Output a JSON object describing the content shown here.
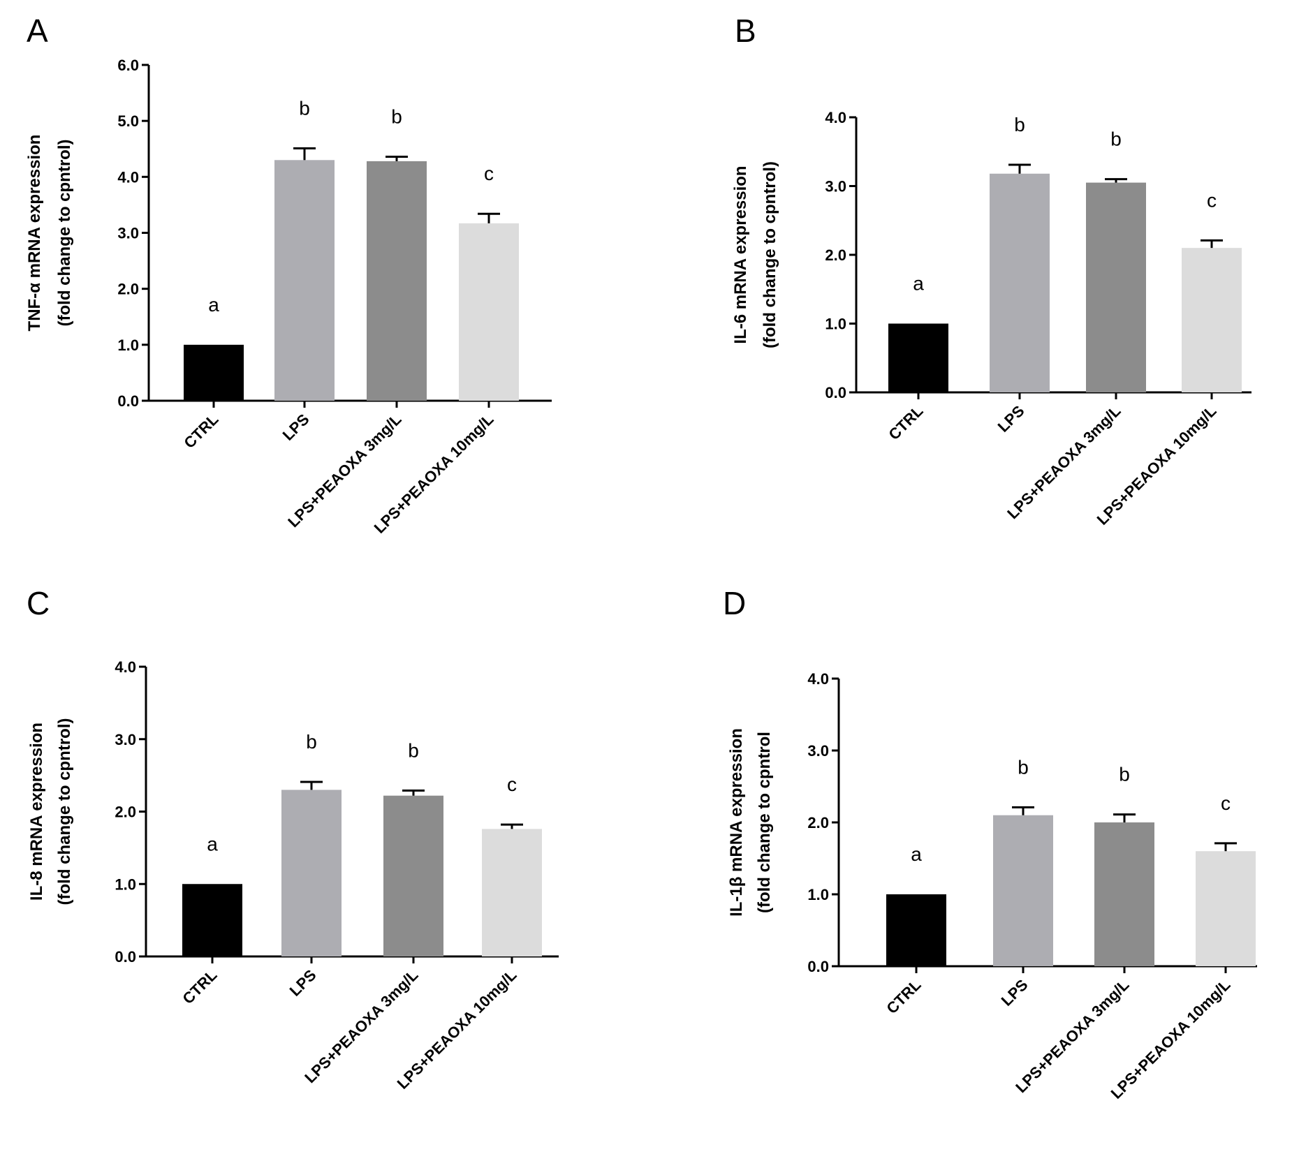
{
  "chart_data": [
    {
      "panel": "A",
      "type": "bar",
      "categories": [
        "CTRL",
        "LPS",
        "LPS+PEAOXA 3mg/L",
        "LPS+PEAOXA 10mg/L"
      ],
      "values": [
        1.0,
        4.3,
        4.28,
        3.17
      ],
      "errors": [
        0.0,
        0.21,
        0.08,
        0.17
      ],
      "significance": [
        "a",
        "b",
        "b",
        "c"
      ],
      "ylabel_line1": "TNF-α mRNA expression",
      "ylabel_line2": "(fold change to cpntrol)",
      "ylim": [
        0,
        6
      ],
      "yticks": [
        "0.0",
        "1.0",
        "2.0",
        "3.0",
        "4.0",
        "5.0",
        "6.0"
      ],
      "colors": [
        "#000000",
        "#adadb2",
        "#8c8c8c",
        "#dcdcdc"
      ]
    },
    {
      "panel": "B",
      "type": "bar",
      "categories": [
        "CTRL",
        "LPS",
        "LPS+PEAOXA 3mg/L",
        "LPS+PEAOXA 10mg/L"
      ],
      "values": [
        1.0,
        3.18,
        3.05,
        2.1
      ],
      "errors": [
        0.0,
        0.13,
        0.05,
        0.11
      ],
      "significance": [
        "a",
        "b",
        "b",
        "c"
      ],
      "ylabel_line1": "IL-6 mRNA expression",
      "ylabel_line2": "(fold change to cpntrol)",
      "ylim": [
        0,
        4
      ],
      "yticks": [
        "0.0",
        "1.0",
        "2.0",
        "3.0",
        "4.0"
      ],
      "colors": [
        "#000000",
        "#adadb2",
        "#8c8c8c",
        "#dcdcdc"
      ]
    },
    {
      "panel": "C",
      "type": "bar",
      "categories": [
        "CTRL",
        "LPS",
        "LPS+PEAOXA 3mg/L",
        "LPS+PEAOXA 10mg/L"
      ],
      "values": [
        1.0,
        2.3,
        2.22,
        1.76
      ],
      "errors": [
        0.0,
        0.11,
        0.07,
        0.06
      ],
      "significance": [
        "a",
        "b",
        "b",
        "c"
      ],
      "ylabel_line1": "IL-8 mRNA expression",
      "ylabel_line2": "(fold change to cpntrol)",
      "ylim": [
        0,
        4
      ],
      "yticks": [
        "0.0",
        "1.0",
        "2.0",
        "3.0",
        "4.0"
      ],
      "colors": [
        "#000000",
        "#adadb2",
        "#8c8c8c",
        "#dcdcdc"
      ]
    },
    {
      "panel": "D",
      "type": "bar",
      "categories": [
        "CTRL",
        "LPS",
        "LPS+PEAOXA 3mg/L",
        "LPS+PEAOXA 10mg/L"
      ],
      "values": [
        1.0,
        2.1,
        2.0,
        1.6
      ],
      "errors": [
        0.0,
        0.11,
        0.11,
        0.11
      ],
      "significance": [
        "a",
        "b",
        "b",
        "c"
      ],
      "ylabel_line1": "IL-1β  mRNA expression",
      "ylabel_line2": "(fold change to cpntrol",
      "ylim": [
        0,
        4
      ],
      "yticks": [
        "0.0",
        "1.0",
        "2.0",
        "3.0",
        "4.0"
      ],
      "colors": [
        "#000000",
        "#adadb2",
        "#8c8c8c",
        "#dcdcdc"
      ]
    }
  ]
}
